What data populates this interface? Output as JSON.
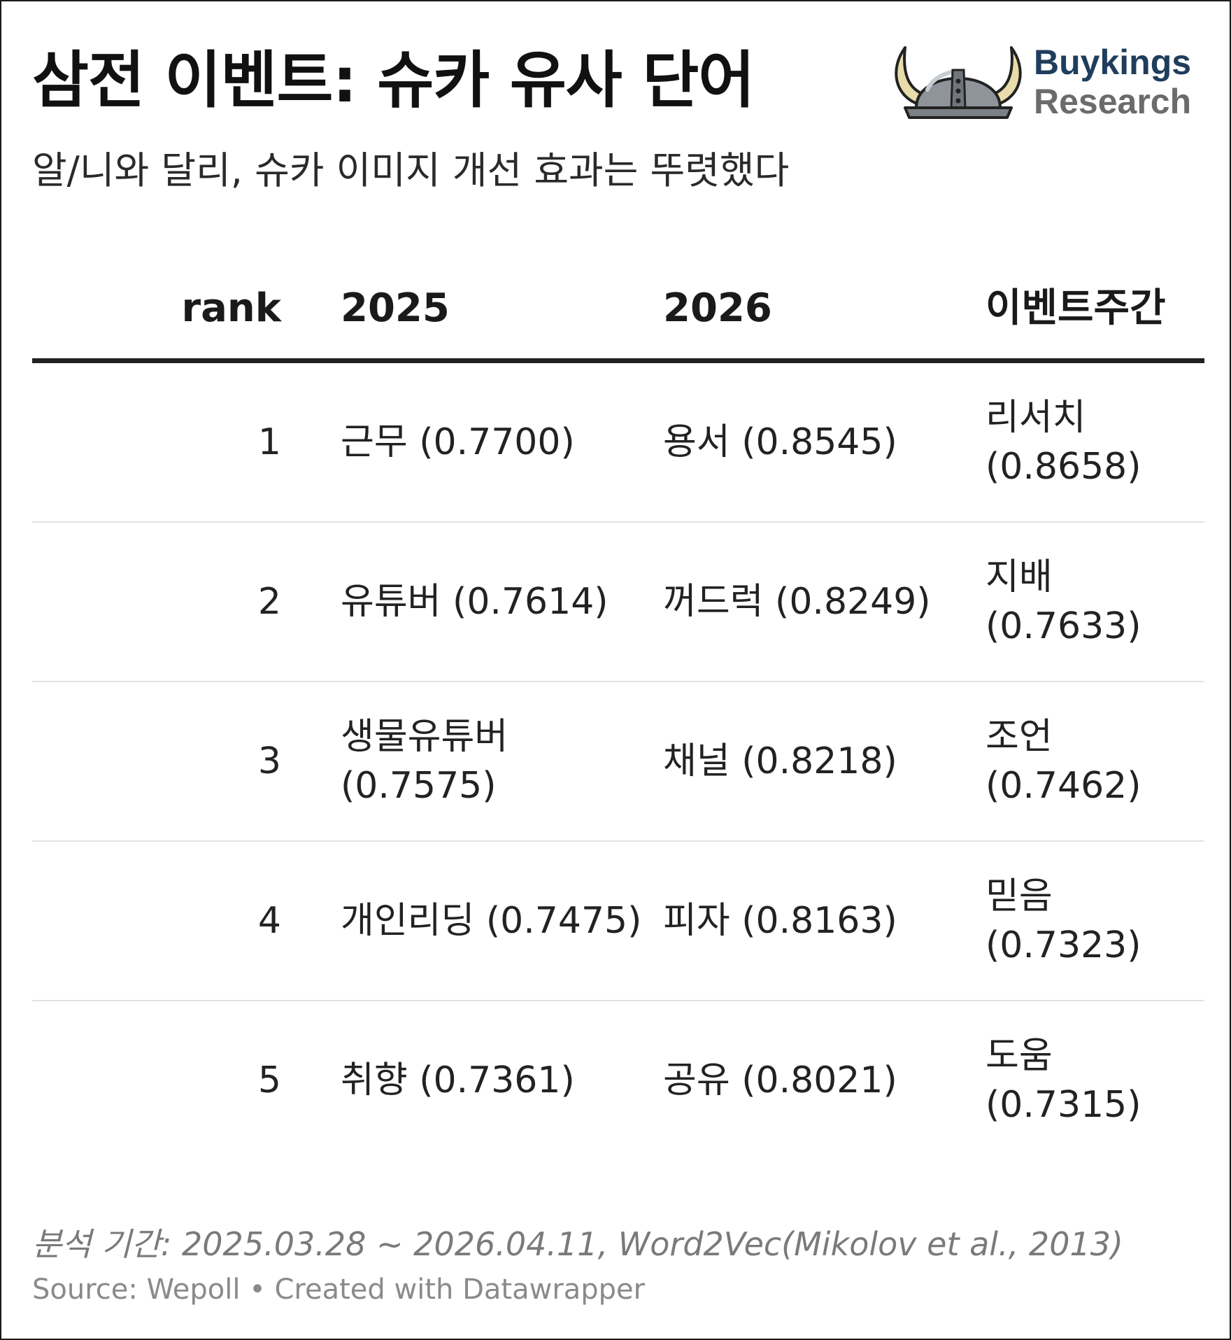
{
  "header": {
    "title": "삼전 이벤트: 슈카 유사 단어",
    "subtitle": "알/니와 달리, 슈카 이미지 개선 효과는 뚜렷했다"
  },
  "logo": {
    "line1": "Buykings",
    "line2": "Research",
    "icon": "viking-helmet-icon",
    "colors": {
      "line1": "#1f3d5c",
      "line2": "#6b6b6b"
    }
  },
  "table": {
    "headers": [
      "rank",
      "2025",
      "2026",
      "이벤트주간"
    ],
    "rows": [
      {
        "rank": "1",
        "y2025": "근무 (0.7700)",
        "y2026": "용서 (0.8545)",
        "event": "리서치 (0.8658)"
      },
      {
        "rank": "2",
        "y2025": "유튜버 (0.7614)",
        "y2026": "꺼드럭 (0.8249)",
        "event": "지배 (0.7633)"
      },
      {
        "rank": "3",
        "y2025": "생물유튜버 (0.7575)",
        "y2026": "채널 (0.8218)",
        "event": "조언 (0.7462)"
      },
      {
        "rank": "4",
        "y2025": "개인리딩 (0.7475)",
        "y2026": "피자 (0.8163)",
        "event": "믿음 (0.7323)"
      },
      {
        "rank": "5",
        "y2025": "취향 (0.7361)",
        "y2026": "공유 (0.8021)",
        "event": "도움 (0.7315)"
      }
    ]
  },
  "footer": {
    "note": "분석 기간: 2025.03.28 ~ 2026.04.11, Word2Vec(Mikolov et al., 2013)",
    "source": "Source: Wepoll • Created with Datawrapper"
  }
}
